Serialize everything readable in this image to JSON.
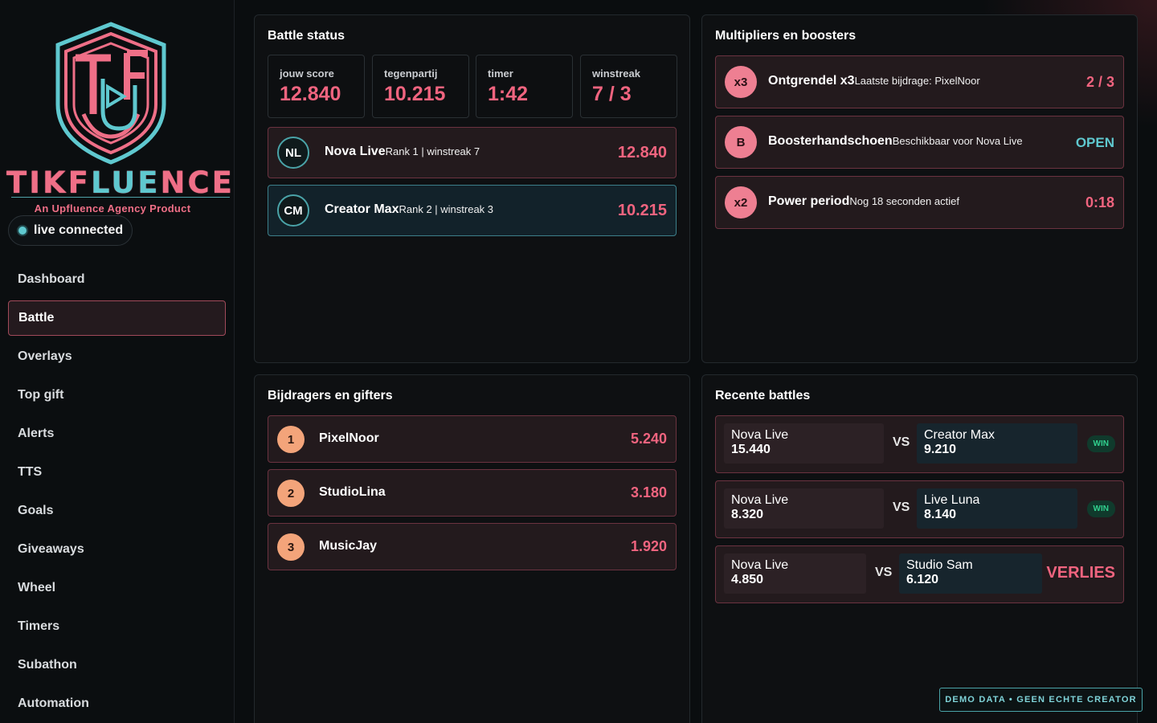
{
  "brand": {
    "name_part1": "TIKF",
    "name_part2": "LUE",
    "name_part3": "NCE",
    "tagline": "An Upfluence Agency Product",
    "colors": {
      "pink": "#ef6f87",
      "teal": "#5fc8cf"
    }
  },
  "status": {
    "label": "live connected",
    "color": "#5fc8cf"
  },
  "nav": {
    "active": "Battle",
    "items": [
      "Dashboard",
      "Battle",
      "Overlays",
      "Top gift",
      "Alerts",
      "TTS",
      "Goals",
      "Giveaways",
      "Wheel",
      "Timers",
      "Subathon",
      "Automation"
    ]
  },
  "battle_status": {
    "title": "Battle status",
    "stats": [
      {
        "label": "jouw score",
        "value": "12.840"
      },
      {
        "label": "tegenpartij",
        "value": "10.215"
      },
      {
        "label": "timer",
        "value": "1:42"
      },
      {
        "label": "winstreak",
        "value": "7 / 3"
      }
    ],
    "players": [
      {
        "initials": "NL",
        "name": "Nova Live",
        "sub": "Rank 1 | winstreak 7",
        "score": "12.840"
      },
      {
        "initials": "CM",
        "name": "Creator Max",
        "sub": "Rank 2 | winstreak 3",
        "score": "10.215"
      }
    ]
  },
  "multipliers": {
    "title": "Multipliers en boosters",
    "items": [
      {
        "badge": "x3",
        "name": "Ontgrendel x3",
        "sub": "Laatste bijdrage: PixelNoor",
        "value": "2 / 3"
      },
      {
        "badge": "B",
        "name": "Boosterhandschoen",
        "sub": "Beschikbaar voor Nova Live",
        "value": "OPEN"
      },
      {
        "badge": "x2",
        "name": "Power period",
        "sub": "Nog 18 seconden actief",
        "value": "0:18"
      }
    ]
  },
  "contributors": {
    "title": "Bijdragers en gifters",
    "items": [
      {
        "rank": "1",
        "name": "PixelNoor",
        "value": "5.240"
      },
      {
        "rank": "2",
        "name": "StudioLina",
        "value": "3.180"
      },
      {
        "rank": "3",
        "name": "MusicJay",
        "value": "1.920"
      }
    ]
  },
  "recent": {
    "title": "Recente battles",
    "vs_label": "VS",
    "items": [
      {
        "left_name": "Nova Live",
        "left_score": "15.440",
        "right_name": "Creator Max",
        "right_score": "9.210",
        "result": "WIN"
      },
      {
        "left_name": "Nova Live",
        "left_score": "8.320",
        "right_name": "Live Luna",
        "right_score": "8.140",
        "result": "WIN"
      },
      {
        "left_name": "Nova Live",
        "left_score": "4.850",
        "right_name": "Studio Sam",
        "right_score": "6.120",
        "result": "VERLIES"
      }
    ]
  },
  "footer": {
    "demo_label": "DEMO DATA • GEEN ECHTE CREATOR"
  }
}
